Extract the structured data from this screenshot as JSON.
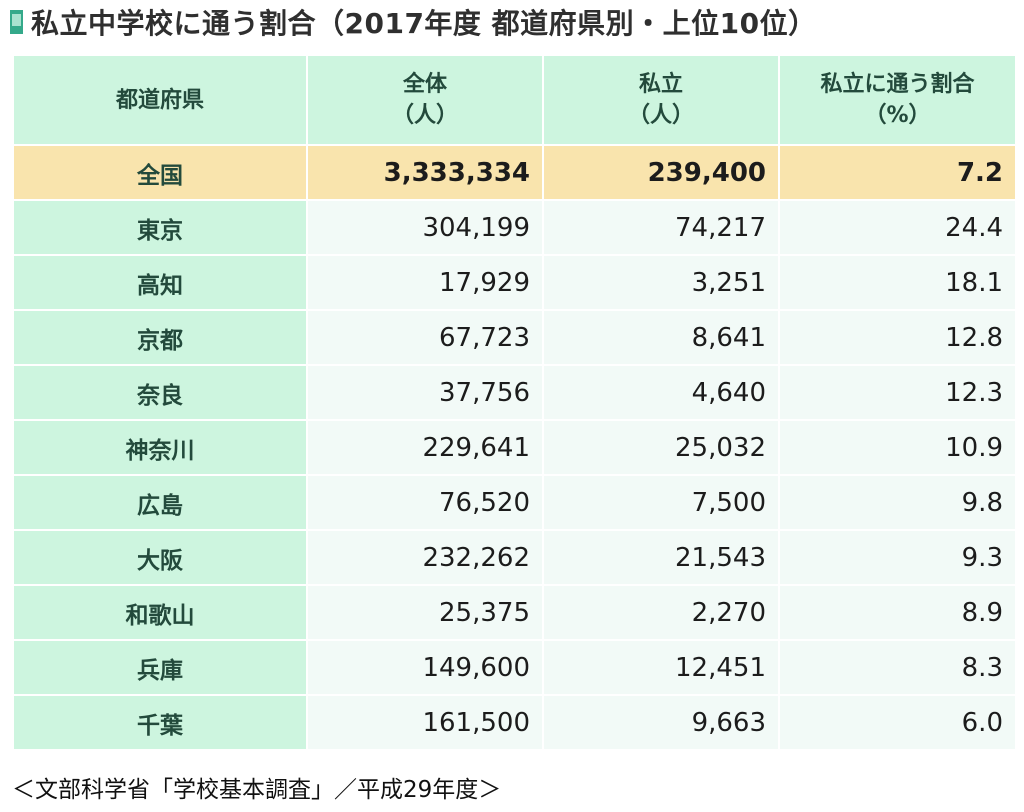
{
  "title": "私立中学校に通う割合（2017年度 都道府県別・上位10位）",
  "table": {
    "headers": [
      {
        "line1": "都道府県",
        "line2": ""
      },
      {
        "line1": "全体",
        "line2": "（人）"
      },
      {
        "line1": "私立",
        "line2": "（人）"
      },
      {
        "line1": "私立に通う割合",
        "line2": "（%）"
      }
    ],
    "rows": [
      {
        "pref": "全国",
        "total": "3,333,334",
        "private": "239,400",
        "ratio": "7.2"
      },
      {
        "pref": "東京",
        "total": "304,199",
        "private": "74,217",
        "ratio": "24.4"
      },
      {
        "pref": "高知",
        "total": "17,929",
        "private": "3,251",
        "ratio": "18.1"
      },
      {
        "pref": "京都",
        "total": "67,723",
        "private": "8,641",
        "ratio": "12.8"
      },
      {
        "pref": "奈良",
        "total": "37,756",
        "private": "4,640",
        "ratio": "12.3"
      },
      {
        "pref": "神奈川",
        "total": "229,641",
        "private": "25,032",
        "ratio": "10.9"
      },
      {
        "pref": "広島",
        "total": "76,520",
        "private": "7,500",
        "ratio": "9.8"
      },
      {
        "pref": "大阪",
        "total": "232,262",
        "private": "21,543",
        "ratio": "9.3"
      },
      {
        "pref": "和歌山",
        "total": "25,375",
        "private": "2,270",
        "ratio": "8.9"
      },
      {
        "pref": "兵庫",
        "total": "149,600",
        "private": "12,451",
        "ratio": "8.3"
      },
      {
        "pref": "千葉",
        "total": "161,500",
        "private": "9,663",
        "ratio": "6.0"
      }
    ]
  },
  "source": "＜文部科学省「学校基本調査」／平成29年度＞",
  "colors": {
    "header_bg": "#cdf5df",
    "total_row_bg": "#f9e4ad",
    "cell_bg": "#f2faf7",
    "accent": "#34a98a"
  },
  "icons": {
    "title_marker": "bookmark-icon"
  }
}
